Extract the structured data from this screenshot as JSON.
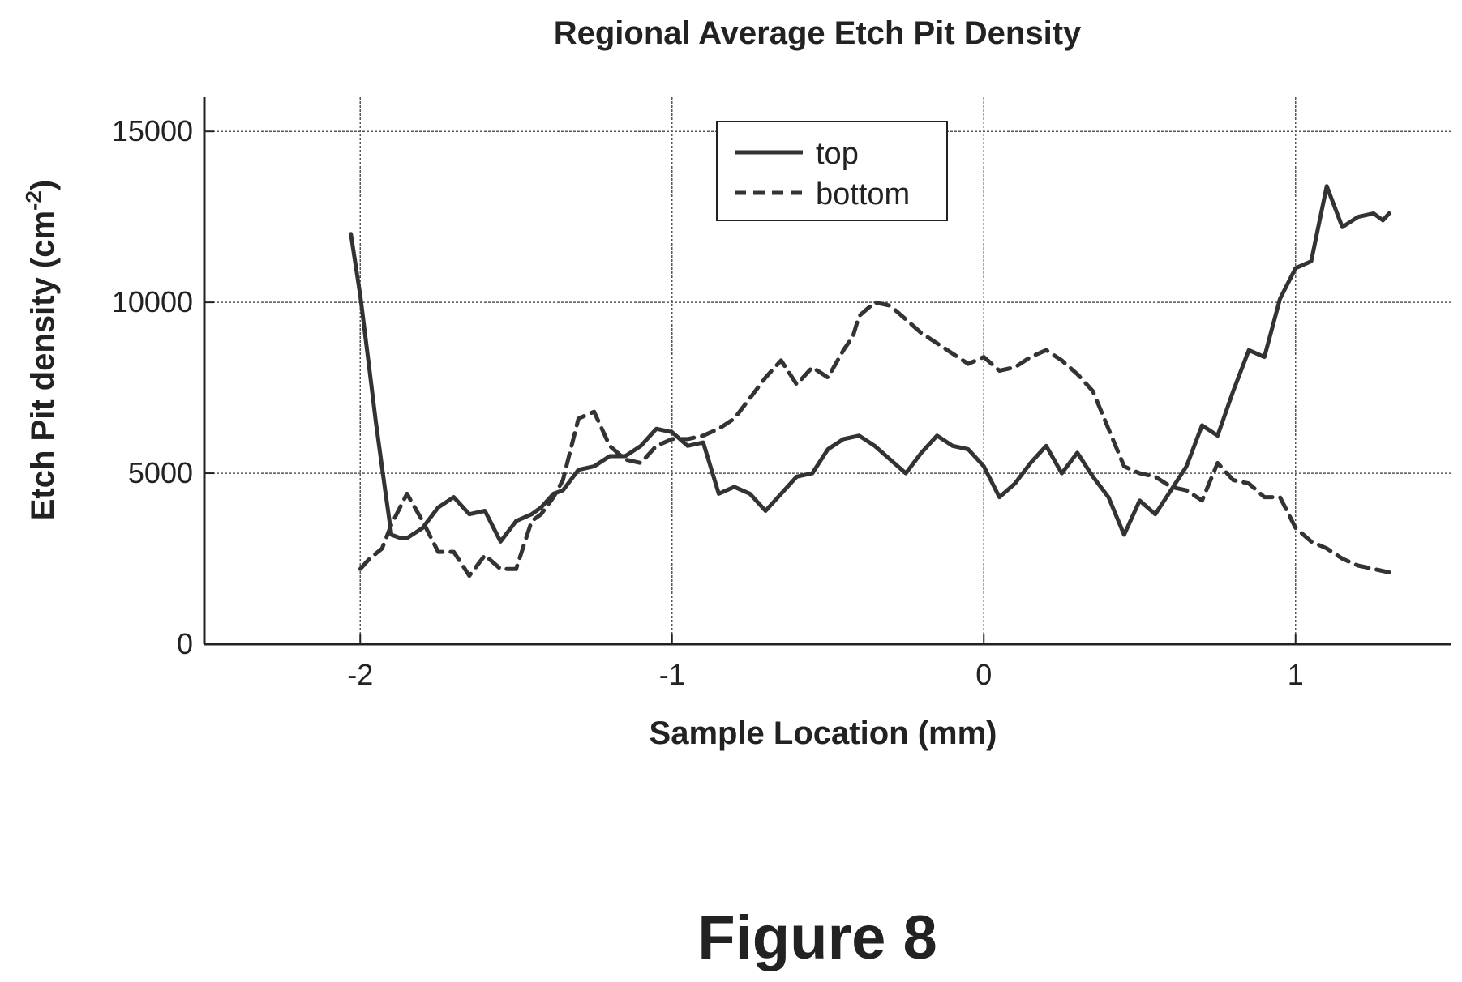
{
  "chart_data": {
    "type": "line",
    "title": "Regional Average Etch Pit Density",
    "xlabel": "Sample Location (mm)",
    "ylabel": "Etch Pit density (cm^-2)",
    "xlim": [
      -2.5,
      1.5
    ],
    "ylim": [
      0,
      16000
    ],
    "xticks": [
      -2,
      -1,
      0,
      1
    ],
    "xtick_labels": [
      "-2",
      "-1",
      "0",
      "1"
    ],
    "yticks": [
      0,
      5000,
      10000,
      15000
    ],
    "ytick_labels": [
      "0",
      "5000",
      "10000",
      "15000"
    ],
    "grid": true,
    "legend_position": "top-center",
    "series": [
      {
        "name": "top",
        "style": "solid",
        "x": [
          -2.03,
          -2.0,
          -1.97,
          -1.95,
          -1.92,
          -1.9,
          -1.87,
          -1.85,
          -1.8,
          -1.75,
          -1.7,
          -1.65,
          -1.6,
          -1.55,
          -1.5,
          -1.45,
          -1.42,
          -1.38,
          -1.35,
          -1.3,
          -1.25,
          -1.2,
          -1.15,
          -1.1,
          -1.05,
          -1.0,
          -0.95,
          -0.9,
          -0.85,
          -0.8,
          -0.75,
          -0.7,
          -0.65,
          -0.6,
          -0.55,
          -0.5,
          -0.45,
          -0.4,
          -0.35,
          -0.3,
          -0.25,
          -0.2,
          -0.15,
          -0.1,
          -0.05,
          0.0,
          0.05,
          0.1,
          0.15,
          0.2,
          0.25,
          0.3,
          0.35,
          0.4,
          0.45,
          0.5,
          0.55,
          0.6,
          0.65,
          0.7,
          0.75,
          0.8,
          0.85,
          0.9,
          0.95,
          1.0,
          1.05,
          1.1,
          1.15,
          1.2,
          1.25,
          1.28,
          1.3
        ],
        "y": [
          12000,
          10200,
          8000,
          6500,
          4500,
          3200,
          3100,
          3100,
          3400,
          4000,
          4300,
          3800,
          3900,
          3000,
          3600,
          3800,
          4000,
          4400,
          4500,
          5100,
          5200,
          5500,
          5500,
          5800,
          6300,
          6200,
          5800,
          5900,
          4400,
          4600,
          4400,
          3900,
          4400,
          4900,
          5000,
          5700,
          6000,
          6100,
          5800,
          5400,
          5000,
          5600,
          6100,
          5800,
          5700,
          5200,
          4300,
          4700,
          5300,
          5800,
          5000,
          5600,
          4900,
          4300,
          3200,
          4200,
          3800,
          4500,
          5200,
          6400,
          6100,
          7400,
          8600,
          8400,
          10100,
          11000,
          11200,
          13400,
          12200,
          12500,
          12600,
          12400,
          12600
        ]
      },
      {
        "name": "bottom",
        "style": "dashed",
        "x": [
          -2.0,
          -1.97,
          -1.93,
          -1.9,
          -1.85,
          -1.8,
          -1.75,
          -1.7,
          -1.65,
          -1.6,
          -1.55,
          -1.5,
          -1.45,
          -1.42,
          -1.38,
          -1.35,
          -1.3,
          -1.25,
          -1.2,
          -1.15,
          -1.1,
          -1.05,
          -1.0,
          -0.95,
          -0.9,
          -0.85,
          -0.8,
          -0.75,
          -0.7,
          -0.65,
          -0.6,
          -0.55,
          -0.5,
          -0.45,
          -0.42,
          -0.4,
          -0.35,
          -0.3,
          -0.25,
          -0.2,
          -0.15,
          -0.1,
          -0.05,
          0.0,
          0.05,
          0.1,
          0.15,
          0.2,
          0.25,
          0.3,
          0.35,
          0.4,
          0.45,
          0.5,
          0.55,
          0.6,
          0.65,
          0.7,
          0.75,
          0.8,
          0.85,
          0.9,
          0.95,
          1.0,
          1.05,
          1.1,
          1.15,
          1.2,
          1.25,
          1.3
        ],
        "y": [
          2200,
          2500,
          2800,
          3500,
          4400,
          3600,
          2700,
          2700,
          2000,
          2600,
          2200,
          2200,
          3600,
          3800,
          4300,
          4800,
          6600,
          6800,
          5800,
          5400,
          5300,
          5800,
          6000,
          6000,
          6100,
          6300,
          6600,
          7200,
          7800,
          8300,
          7600,
          8100,
          7800,
          8600,
          9000,
          9600,
          10000,
          9900,
          9500,
          9100,
          8800,
          8500,
          8200,
          8400,
          8000,
          8100,
          8400,
          8600,
          8300,
          7900,
          7400,
          6300,
          5200,
          5000,
          4900,
          4600,
          4500,
          4200,
          5300,
          4800,
          4700,
          4300,
          4300,
          3400,
          3000,
          2800,
          2500,
          2300,
          2200,
          2100
        ]
      }
    ]
  },
  "caption": "Figure 8"
}
